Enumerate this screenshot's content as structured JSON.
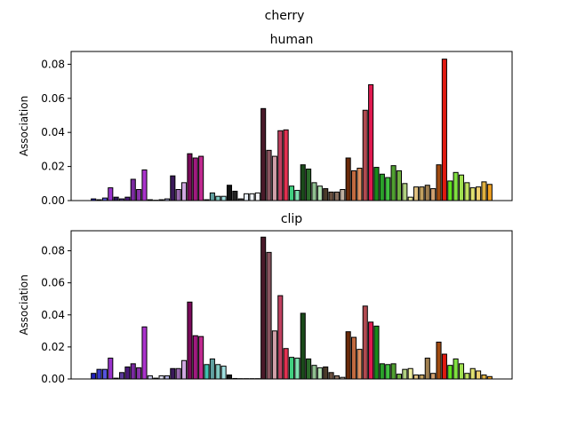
{
  "figure": {
    "suptitle": "cherry"
  },
  "chart_data": [
    {
      "type": "bar",
      "title": "human",
      "xlabel": "",
      "ylabel": "Association",
      "ylim": [
        0,
        0.0875
      ],
      "yticks": [
        0.0,
        0.02,
        0.04,
        0.06,
        0.08
      ],
      "ytick_labels": [
        "0.00",
        "0.02",
        "0.04",
        "0.06",
        "0.08"
      ],
      "xticks": false,
      "grid": false,
      "legend": "none",
      "values": [
        0.001,
        0.0005,
        0.0015,
        0.0075,
        0.002,
        0.001,
        0.002,
        0.0125,
        0.0065,
        0.018,
        0.0005,
        0.0002,
        0.0005,
        0.001,
        0.0145,
        0.0065,
        0.0105,
        0.0275,
        0.025,
        0.026,
        0.0005,
        0.0045,
        0.0025,
        0.0025,
        0.009,
        0.0055,
        0.001,
        0.004,
        0.004,
        0.0045,
        0.054,
        0.0295,
        0.026,
        0.041,
        0.0415,
        0.0085,
        0.006,
        0.021,
        0.0185,
        0.0105,
        0.0085,
        0.007,
        0.005,
        0.005,
        0.0065,
        0.025,
        0.0175,
        0.019,
        0.053,
        0.068,
        0.0195,
        0.0155,
        0.0135,
        0.0205,
        0.0175,
        0.01,
        0.002,
        0.008,
        0.008,
        0.009,
        0.007,
        0.021,
        0.083,
        0.0115,
        0.0165,
        0.015,
        0.0105,
        0.0075,
        0.008,
        0.011,
        0.0095
      ]
    },
    {
      "type": "bar",
      "title": "clip",
      "xlabel": "",
      "ylabel": "Association",
      "ylim": [
        0,
        0.0925
      ],
      "yticks": [
        0.0,
        0.02,
        0.04,
        0.06,
        0.08
      ],
      "ytick_labels": [
        "0.00",
        "0.02",
        "0.04",
        "0.06",
        "0.08"
      ],
      "xticks": false,
      "grid": false,
      "legend": "none",
      "values": [
        0.0035,
        0.006,
        0.006,
        0.013,
        0.0005,
        0.004,
        0.0075,
        0.0095,
        0.007,
        0.0325,
        0.002,
        0.0005,
        0.002,
        0.002,
        0.0065,
        0.0065,
        0.0115,
        0.048,
        0.027,
        0.0265,
        0.009,
        0.0125,
        0.009,
        0.008,
        0.0025,
        0.0003,
        0.0002,
        0.0002,
        0.0002,
        0.0002,
        0.0885,
        0.079,
        0.03,
        0.052,
        0.019,
        0.0135,
        0.013,
        0.041,
        0.0125,
        0.0085,
        0.007,
        0.0075,
        0.004,
        0.002,
        0.001,
        0.0295,
        0.026,
        0.0185,
        0.0455,
        0.0355,
        0.033,
        0.0095,
        0.009,
        0.0095,
        0.003,
        0.006,
        0.0065,
        0.0025,
        0.0025,
        0.013,
        0.0035,
        0.023,
        0.0155,
        0.0085,
        0.0125,
        0.0095,
        0.0035,
        0.0065,
        0.005,
        0.0025,
        0.0015
      ]
    }
  ],
  "bar_colors": [
    "#2222bb",
    "#3a3acc",
    "#5555dd",
    "#9933cc",
    "#2a1a55",
    "#5a3a99",
    "#4a1a7a",
    "#7a2aa0",
    "#8a33aa",
    "#aa33cc",
    "#c8c8e8",
    "#d8d8f0",
    "#e0e0f0",
    "#b0b0e0",
    "#3a1a5a",
    "#9a6ab0",
    "#d0a8e0",
    "#7a0a5a",
    "#a01a80",
    "#c02a90",
    "#40c0b0",
    "#60a0a0",
    "#80c8c0",
    "#a0e0e0",
    "#111111",
    "#222222",
    "#444444",
    "#e8f0f8",
    "#f0f4f8",
    "#f8f8fc",
    "#4a1a2a",
    "#8a5560",
    "#d0a0a8",
    "#c04060",
    "#e03050",
    "#40d080",
    "#80e0b0",
    "#1a4a1a",
    "#2a6a2a",
    "#90c090",
    "#b0e0b0",
    "#4a3a2a",
    "#6a5040",
    "#8a7060",
    "#c0b0a0",
    "#6a2a0a",
    "#c06a40",
    "#e09060",
    "#b04a50",
    "#e01a50",
    "#1a8a1a",
    "#2aa02a",
    "#40c040",
    "#50a030",
    "#70b040",
    "#b0d080",
    "#f0f0a0",
    "#e0c080",
    "#c0a060",
    "#a08050",
    "#d0a070",
    "#a04a10",
    "#e01a10",
    "#60e020",
    "#80e040",
    "#a0e050",
    "#c0e060",
    "#e0e070",
    "#f0d070",
    "#e0b040",
    "#f0a020"
  ]
}
